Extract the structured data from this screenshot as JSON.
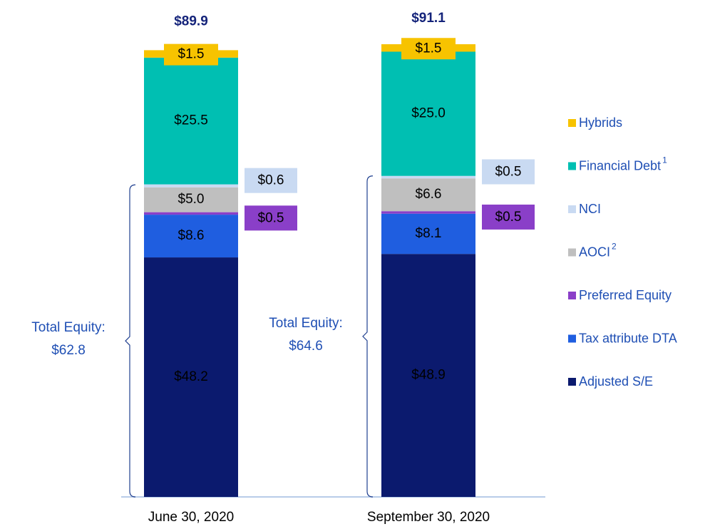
{
  "chart_data": {
    "type": "stacked_bar",
    "categories": [
      "June 30, 2020",
      "September 30, 2020"
    ],
    "series": [
      {
        "name": "Adjusted S/E",
        "color": "#0b1a6e",
        "values": [
          48.2,
          48.9
        ],
        "value_labels": [
          "$48.2",
          "$48.9"
        ]
      },
      {
        "name": "Tax attribute DTA",
        "color": "#1f5ee0",
        "values": [
          8.6,
          8.1
        ],
        "value_labels": [
          "$8.6",
          "$8.1"
        ]
      },
      {
        "name": "Preferred Equity",
        "color": "#8a3fc8",
        "values": [
          0.5,
          0.5
        ],
        "value_labels": [
          "$0.5",
          "$0.5"
        ]
      },
      {
        "name": "AOCI",
        "footnote": "2",
        "color": "#bfbfbf",
        "values": [
          5.0,
          6.6
        ],
        "value_labels": [
          "$5.0",
          "$6.6"
        ]
      },
      {
        "name": "NCI",
        "color": "#c9daf2",
        "values": [
          0.6,
          0.5
        ],
        "value_labels": [
          "$0.6",
          "$0.5"
        ]
      },
      {
        "name": "Financial Debt",
        "footnote": "1",
        "color": "#00bfb2",
        "values": [
          25.5,
          25.0
        ],
        "value_labels": [
          "$25.5",
          "$25.0"
        ]
      },
      {
        "name": "Hybrids",
        "color": "#f7c300",
        "values": [
          1.5,
          1.5
        ],
        "value_labels": [
          "$1.5",
          "$1.5"
        ]
      }
    ],
    "totals": [
      89.9,
      91.1
    ],
    "total_labels": [
      "$89.9",
      "$91.1"
    ],
    "equity_label": "Total Equity:",
    "equity_totals": [
      62.8,
      64.6
    ],
    "equity_total_labels": [
      "$62.8",
      "$64.6"
    ],
    "ylim": [
      0,
      100
    ]
  }
}
